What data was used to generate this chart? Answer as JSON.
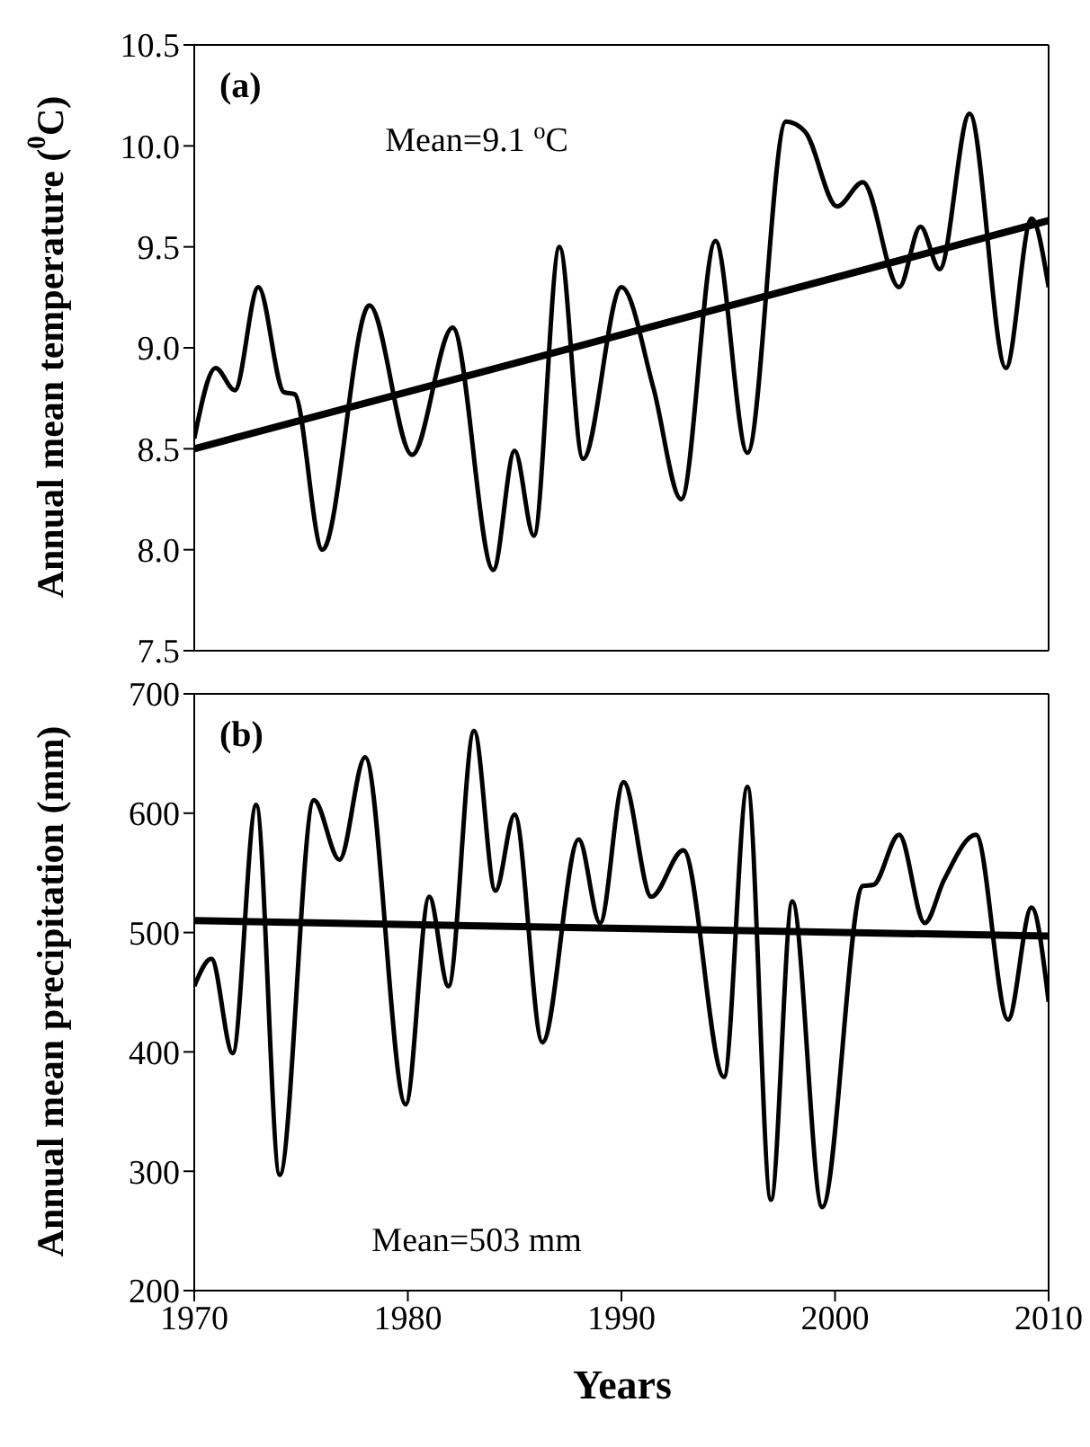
{
  "chart_data": [
    {
      "type": "line",
      "ylabel": "Annual mean temperature ($^{0}$C)",
      "annotations": [
        "(a)",
        "Mean=9.1 $^{o}$C"
      ],
      "xlim": [
        1970,
        2010
      ],
      "xticks": [
        1970,
        1980,
        1990,
        2000,
        2010
      ],
      "ylim": [
        7.5,
        10.5
      ],
      "yticks": [
        7.5,
        {
          "value": 8,
          "label": "8.0"
        },
        8.5,
        {
          "value": 9,
          "label": "9.0"
        },
        9.5,
        {
          "value": 10,
          "label": "10.0"
        },
        10.5
      ],
      "tick_labels": "y",
      "marker": "none",
      "line_style": "solid",
      "series": [
        {
          "color": "#000000",
          "x": [
            1970,
            1971,
            1971.9,
            1973,
            1974.2,
            1974.7,
            1976,
            1978.2,
            1980.2,
            1982.1,
            1984,
            1985,
            1985.9,
            1987.1,
            1988.2,
            1990,
            1991.5,
            1992.8,
            1994.4,
            1995.9,
            1997.7,
            1998.6,
            2000.1,
            2001.3,
            2003,
            2004,
            2004.9,
            2006.3,
            2008,
            2009.2,
            2010
          ],
          "values": [
            8.55,
            8.9,
            8.79,
            9.3,
            8.78,
            8.77,
            8.0,
            9.21,
            8.47,
            9.1,
            7.9,
            8.49,
            8.07,
            9.5,
            8.45,
            9.3,
            8.8,
            8.25,
            9.53,
            8.48,
            10.12,
            10.07,
            9.7,
            9.82,
            9.3,
            9.6,
            9.39,
            10.16,
            8.9,
            9.64,
            9.3
          ]
        },
        {
          "type": "line",
          "color": "#000000",
          "x": [
            1970,
            2010
          ],
          "values": [
            8.5,
            9.63
          ]
        }
      ]
    },
    {
      "type": "line",
      "ylabel": "Annual mean precipitation (mm)",
      "xlabel": "Years",
      "annotations": [
        "(b)",
        "Mean=503 mm"
      ],
      "xlim": [
        1970,
        2010
      ],
      "xticks": [
        1970,
        1980,
        1990,
        2000,
        2010
      ],
      "ylim": [
        200,
        700
      ],
      "yticks": [
        200,
        300,
        400,
        500,
        600,
        700
      ],
      "marker": "none",
      "line_style": "solid",
      "series": [
        {
          "color": "#000000",
          "x": [
            1970,
            1970.8,
            1971.8,
            1972.9,
            1974,
            1975.6,
            1976.8,
            1978,
            1979.9,
            1981,
            1981.9,
            1983.1,
            1984.1,
            1985,
            1986.3,
            1988,
            1989,
            1990.1,
            1991.4,
            1992.9,
            1994.8,
            1995.9,
            1997,
            1998,
            1999.4,
            2001.3,
            2001.8,
            2003,
            2004.2,
            2005.1,
            2006.6,
            2008.1,
            2009.2,
            2010
          ],
          "values": [
            455,
            478,
            399,
            607,
            297,
            611,
            561,
            647,
            356,
            530,
            455,
            669,
            535,
            599,
            408,
            578,
            508,
            626,
            530,
            569,
            379,
            622,
            276,
            526,
            270,
            539,
            540,
            582,
            508,
            544,
            582,
            427,
            521,
            442
          ]
        },
        {
          "type": "line",
          "color": "#000000",
          "x": [
            1970,
            2010
          ],
          "values": [
            510,
            497
          ]
        }
      ]
    }
  ]
}
